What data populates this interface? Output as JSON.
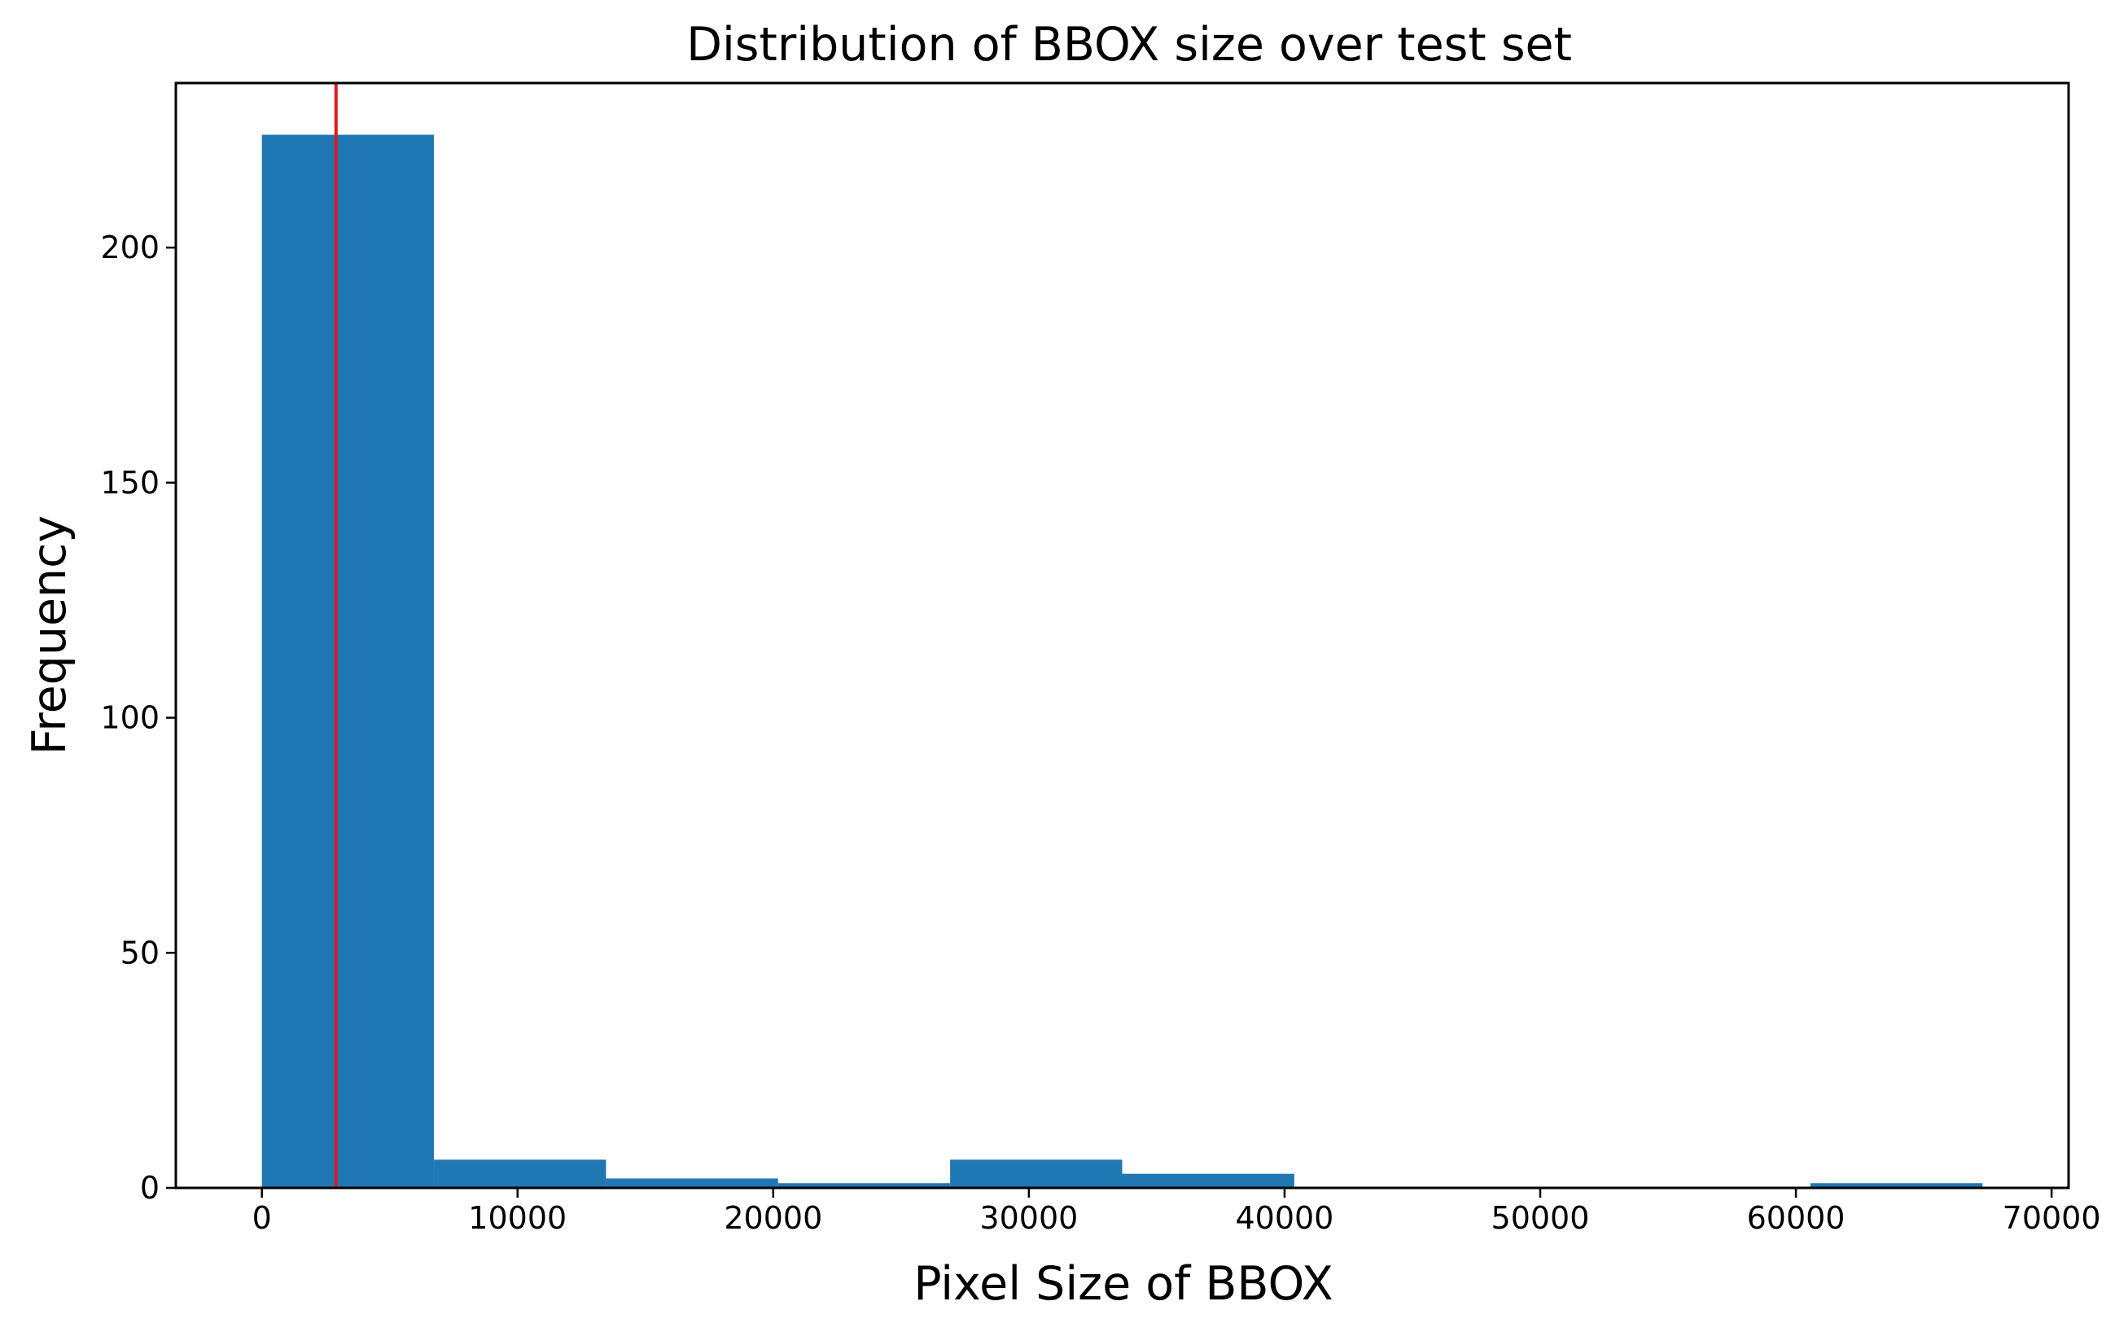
{
  "chart_data": {
    "type": "bar",
    "subtype": "histogram",
    "title": "Distribution of BBOX size over test set",
    "xlabel": "Pixel Size of BBOX",
    "ylabel": "Frequency",
    "bin_edges": [
      0,
      6730,
      13460,
      20190,
      26920,
      33650,
      40380,
      47110,
      53840,
      60570,
      67300
    ],
    "values": [
      224,
      6,
      2,
      1,
      6,
      3,
      0,
      0,
      0,
      1
    ],
    "xlim": [
      -3365,
      70665
    ],
    "ylim": [
      0,
      235
    ],
    "xticks": [
      0,
      10000,
      20000,
      30000,
      40000,
      50000,
      60000,
      70000
    ],
    "xtick_labels": [
      "0",
      "10000",
      "20000",
      "30000",
      "40000",
      "50000",
      "60000",
      "70000"
    ],
    "yticks": [
      0,
      50,
      100,
      150,
      200
    ],
    "ytick_labels": [
      "0",
      "50",
      "100",
      "150",
      "200"
    ],
    "vertical_line": {
      "x": 2900,
      "color": "#e31a1c"
    },
    "bar_color": "#1f77b4",
    "grid": false,
    "legend": "none"
  }
}
